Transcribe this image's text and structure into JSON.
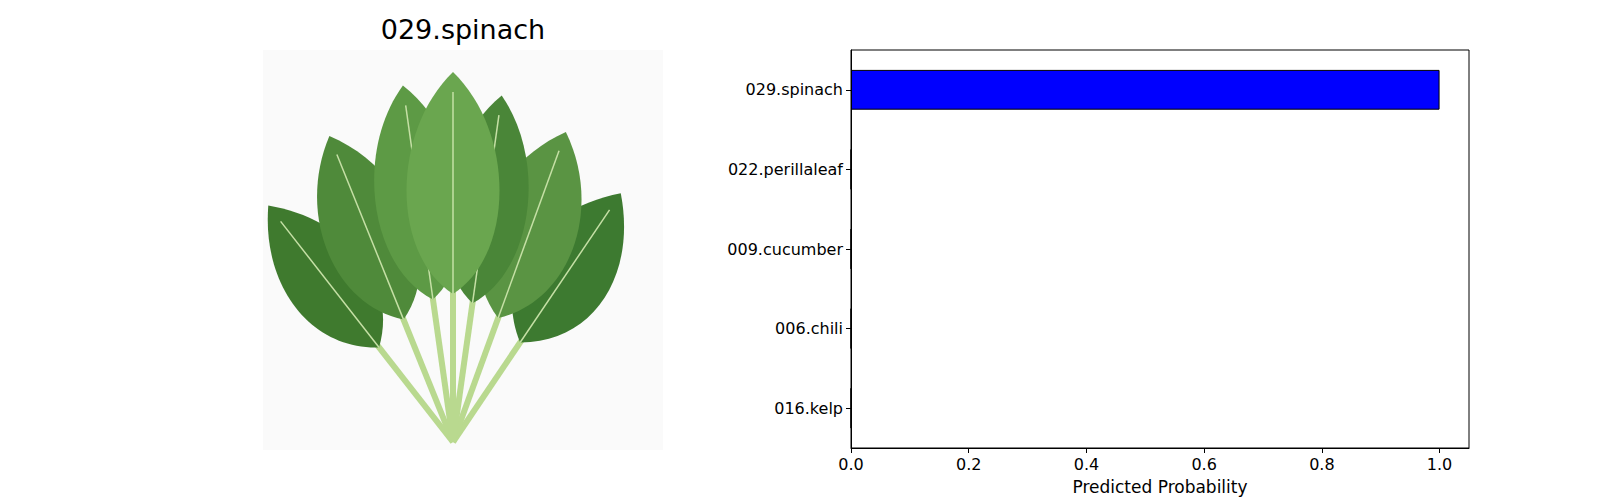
{
  "image": {
    "title": "029.spinach"
  },
  "chart_data": {
    "type": "bar",
    "orientation": "horizontal",
    "categories": [
      "029.spinach",
      "022.perillaleaf",
      "009.cucumber",
      "006.chili",
      "016.kelp"
    ],
    "values": [
      1.0,
      0.0,
      0.0,
      0.0,
      0.0
    ],
    "color": "#0000ff",
    "x_label": "Predicted Probability",
    "xlim": [
      0,
      1.05
    ],
    "xticks": [
      {
        "value": 0,
        "label": "0.0"
      },
      0.2,
      0.4,
      0.6,
      0.8,
      {
        "value": 1,
        "label": "1.0"
      }
    ],
    "grid": false
  }
}
